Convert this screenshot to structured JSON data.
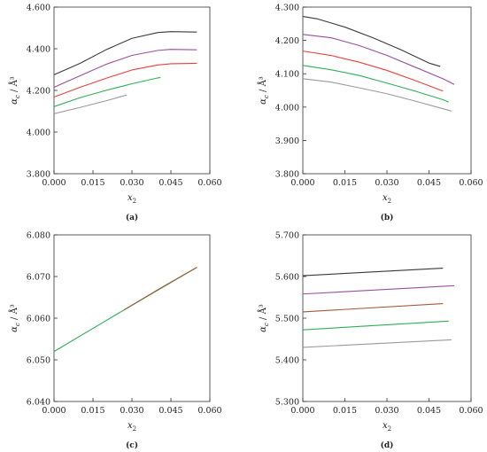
{
  "chart_data": [
    {
      "type": "line",
      "panel_label": "(a)",
      "xlabel": "x",
      "xlabel_sub": "2",
      "ylabel": "α",
      "ylabel_sub": "c",
      "ylabel_unit": " / Å³",
      "xlim": [
        0,
        0.06
      ],
      "ylim": [
        3.8,
        4.6
      ],
      "xticks": [
        "0.000",
        "0.015",
        "0.030",
        "0.045",
        "0.060"
      ],
      "yticks": [
        "3.800",
        "4.000",
        "4.200",
        "4.400",
        "4.600"
      ],
      "series": [
        {
          "color": "#3a3a3a",
          "points": [
            [
              0.0,
              4.275
            ],
            [
              0.01,
              4.33
            ],
            [
              0.02,
              4.395
            ],
            [
              0.03,
              4.45
            ],
            [
              0.04,
              4.478
            ],
            [
              0.045,
              4.482
            ],
            [
              0.055,
              4.48
            ]
          ]
        },
        {
          "color": "#9b4f9e",
          "points": [
            [
              0.0,
              4.215
            ],
            [
              0.01,
              4.27
            ],
            [
              0.02,
              4.325
            ],
            [
              0.03,
              4.368
            ],
            [
              0.04,
              4.392
            ],
            [
              0.045,
              4.397
            ],
            [
              0.055,
              4.395
            ]
          ]
        },
        {
          "color": "#e8413c",
          "points": [
            [
              0.0,
              4.168
            ],
            [
              0.01,
              4.215
            ],
            [
              0.02,
              4.258
            ],
            [
              0.03,
              4.298
            ],
            [
              0.04,
              4.322
            ],
            [
              0.045,
              4.328
            ],
            [
              0.055,
              4.33
            ]
          ]
        },
        {
          "color": "#2fae5a",
          "points": [
            [
              0.0,
              4.122
            ],
            [
              0.01,
              4.165
            ],
            [
              0.02,
              4.2
            ],
            [
              0.03,
              4.232
            ],
            [
              0.04,
              4.26
            ],
            [
              0.041,
              4.262
            ]
          ]
        },
        {
          "color": "#9a9a9a",
          "points": [
            [
              0.0,
              4.088
            ],
            [
              0.01,
              4.118
            ],
            [
              0.02,
              4.15
            ],
            [
              0.028,
              4.178
            ]
          ]
        }
      ]
    },
    {
      "type": "line",
      "panel_label": "(b)",
      "xlabel": "x",
      "xlabel_sub": "2",
      "ylabel": "α",
      "ylabel_sub": "c",
      "ylabel_unit": " / Å³",
      "xlim": [
        0,
        0.06
      ],
      "ylim": [
        3.8,
        4.3
      ],
      "xticks": [
        "0.000",
        "0.015",
        "0.030",
        "0.045",
        "0.060"
      ],
      "yticks": [
        "3.800",
        "3.900",
        "4.000",
        "4.100",
        "4.200",
        "4.300"
      ],
      "series": [
        {
          "color": "#3a3a3a",
          "points": [
            [
              0.0,
              4.272
            ],
            [
              0.005,
              4.265
            ],
            [
              0.015,
              4.24
            ],
            [
              0.025,
              4.208
            ],
            [
              0.035,
              4.172
            ],
            [
              0.045,
              4.132
            ],
            [
              0.049,
              4.122
            ]
          ]
        },
        {
          "color": "#9b4f9e",
          "points": [
            [
              0.0,
              4.218
            ],
            [
              0.01,
              4.208
            ],
            [
              0.02,
              4.185
            ],
            [
              0.03,
              4.155
            ],
            [
              0.04,
              4.12
            ],
            [
              0.05,
              4.085
            ],
            [
              0.054,
              4.068
            ]
          ]
        },
        {
          "color": "#e8413c",
          "points": [
            [
              0.0,
              4.168
            ],
            [
              0.01,
              4.155
            ],
            [
              0.02,
              4.135
            ],
            [
              0.03,
              4.11
            ],
            [
              0.04,
              4.08
            ],
            [
              0.05,
              4.048
            ]
          ]
        },
        {
          "color": "#2fae5a",
          "points": [
            [
              0.0,
              4.125
            ],
            [
              0.01,
              4.112
            ],
            [
              0.02,
              4.095
            ],
            [
              0.03,
              4.072
            ],
            [
              0.04,
              4.048
            ],
            [
              0.05,
              4.022
            ],
            [
              0.052,
              4.015
            ]
          ]
        },
        {
          "color": "#9a9a9a",
          "points": [
            [
              0.0,
              4.085
            ],
            [
              0.01,
              4.075
            ],
            [
              0.02,
              4.058
            ],
            [
              0.03,
              4.04
            ],
            [
              0.04,
              4.018
            ],
            [
              0.05,
              3.995
            ],
            [
              0.053,
              3.988
            ]
          ]
        }
      ]
    },
    {
      "type": "line",
      "panel_label": "(c)",
      "xlabel": "x",
      "xlabel_sub": "2",
      "ylabel": "α",
      "ylabel_sub": "c",
      "ylabel_unit": " / Å³",
      "xlim": [
        0,
        0.06
      ],
      "ylim": [
        6.04,
        6.08
      ],
      "xticks": [
        "0.000",
        "0.015",
        "0.030",
        "0.045",
        "0.060"
      ],
      "yticks": [
        "6.040",
        "6.050",
        "6.060",
        "6.070",
        "6.080"
      ],
      "series": [
        {
          "color": "#2fae5a",
          "points": [
            [
              0.0,
              6.052
            ],
            [
              0.027,
              6.062
            ],
            [
              0.055,
              6.0722
            ]
          ]
        },
        {
          "color": "#a05a3c",
          "points": [
            [
              0.027,
              6.062
            ],
            [
              0.041,
              6.0672
            ],
            [
              0.055,
              6.0722
            ]
          ]
        }
      ]
    },
    {
      "type": "line",
      "panel_label": "(d)",
      "xlabel": "x",
      "xlabel_sub": "2",
      "ylabel": "α",
      "ylabel_sub": "c",
      "ylabel_unit": " / Å³",
      "xlim": [
        0,
        0.06
      ],
      "ylim": [
        5.3,
        5.7
      ],
      "xticks": [
        "0.000",
        "0.015",
        "0.030",
        "0.045",
        "0.060"
      ],
      "yticks": [
        "5.300",
        "5.400",
        "5.500",
        "5.600",
        "5.700"
      ],
      "series": [
        {
          "color": "#3a3a3a",
          "points": [
            [
              0.0,
              5.602
            ],
            [
              0.05,
              5.62
            ]
          ]
        },
        {
          "color": "#9b4f9e",
          "points": [
            [
              0.0,
              5.558
            ],
            [
              0.054,
              5.578
            ]
          ]
        },
        {
          "color": "#a05a3c",
          "points": [
            [
              0.0,
              5.515
            ],
            [
              0.05,
              5.535
            ]
          ]
        },
        {
          "color": "#2fae5a",
          "points": [
            [
              0.0,
              5.472
            ],
            [
              0.052,
              5.493
            ]
          ]
        },
        {
          "color": "#9a9a9a",
          "points": [
            [
              0.0,
              5.43
            ],
            [
              0.053,
              5.448
            ]
          ]
        }
      ]
    }
  ]
}
